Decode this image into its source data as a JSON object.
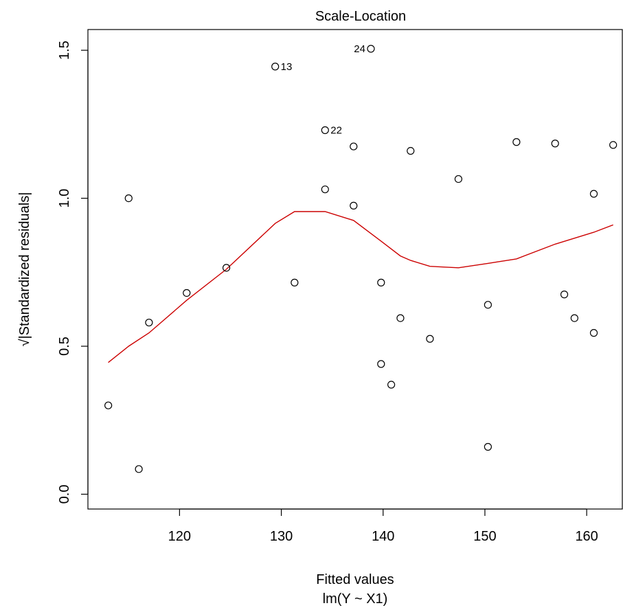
{
  "chart_data": {
    "type": "scatter",
    "title": "Scale-Location",
    "xlabel": "Fitted values",
    "sublabel": "lm(Y ~ X1)",
    "ylabel": "√|Standardized residuals|",
    "xlim": [
      111,
      163.5
    ],
    "ylim": [
      -0.05,
      1.57
    ],
    "xticks": [
      120,
      130,
      140,
      150,
      160
    ],
    "yticks": [
      0.0,
      0.5,
      1.0,
      1.5
    ],
    "xtick_labels": [
      "120",
      "130",
      "140",
      "150",
      "160"
    ],
    "ytick_labels": [
      "0.0",
      "0.5",
      "1.0",
      "1.5"
    ],
    "points": [
      {
        "x": 113.0,
        "y": 0.3
      },
      {
        "x": 115.0,
        "y": 1.0
      },
      {
        "x": 116.0,
        "y": 0.085
      },
      {
        "x": 117.0,
        "y": 0.58
      },
      {
        "x": 120.7,
        "y": 0.68
      },
      {
        "x": 124.6,
        "y": 0.765
      },
      {
        "x": 129.4,
        "y": 1.445,
        "label": "13"
      },
      {
        "x": 131.3,
        "y": 0.715
      },
      {
        "x": 134.3,
        "y": 1.23,
        "label": "22"
      },
      {
        "x": 134.3,
        "y": 1.03
      },
      {
        "x": 137.1,
        "y": 1.175
      },
      {
        "x": 137.1,
        "y": 0.975
      },
      {
        "x": 138.8,
        "y": 1.505,
        "label": "24"
      },
      {
        "x": 139.8,
        "y": 0.715
      },
      {
        "x": 139.8,
        "y": 0.44
      },
      {
        "x": 140.8,
        "y": 0.37
      },
      {
        "x": 141.7,
        "y": 0.595
      },
      {
        "x": 142.7,
        "y": 1.16
      },
      {
        "x": 144.6,
        "y": 0.525
      },
      {
        "x": 147.4,
        "y": 1.065
      },
      {
        "x": 150.3,
        "y": 0.64
      },
      {
        "x": 150.3,
        "y": 0.16
      },
      {
        "x": 153.1,
        "y": 1.19
      },
      {
        "x": 156.9,
        "y": 1.185
      },
      {
        "x": 157.8,
        "y": 0.675
      },
      {
        "x": 158.8,
        "y": 0.595
      },
      {
        "x": 160.7,
        "y": 1.015
      },
      {
        "x": 160.7,
        "y": 0.545
      },
      {
        "x": 162.6,
        "y": 1.18
      }
    ],
    "smoother": {
      "color": "#cc0000",
      "x": [
        113.0,
        115.0,
        117.0,
        120.7,
        124.6,
        129.4,
        131.3,
        134.3,
        137.1,
        139.8,
        141.7,
        142.7,
        144.6,
        147.4,
        150.3,
        153.1,
        156.9,
        160.7,
        162.6
      ],
      "y": [
        0.445,
        0.5,
        0.545,
        0.655,
        0.76,
        0.915,
        0.955,
        0.955,
        0.925,
        0.855,
        0.805,
        0.79,
        0.77,
        0.765,
        0.78,
        0.795,
        0.845,
        0.885,
        0.91
      ]
    }
  }
}
